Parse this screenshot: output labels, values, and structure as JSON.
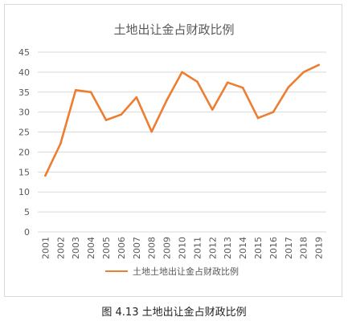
{
  "chart_data": {
    "type": "line",
    "title": "土地出让金占财政比例",
    "caption": "图 4.13 土地出让金占财政比例",
    "x": [
      "2001",
      "2002",
      "2003",
      "2004",
      "2005",
      "2006",
      "2007",
      "2008",
      "2009",
      "2010",
      "2011",
      "2012",
      "2013",
      "2014",
      "2015",
      "2016",
      "2017",
      "2018",
      "2019"
    ],
    "series": [
      {
        "name": "土地土地出让金占财政比例",
        "values": [
          14.1,
          22.1,
          35.5,
          35.0,
          28.0,
          29.4,
          33.7,
          25.1,
          33.0,
          40.0,
          37.6,
          30.6,
          37.4,
          36.1,
          28.5,
          30.0,
          36.2,
          40.0,
          41.8
        ]
      }
    ],
    "ylim": [
      0,
      45
    ],
    "yticks": [
      0,
      5,
      10,
      15,
      20,
      25,
      30,
      35,
      40,
      45
    ],
    "grid": true,
    "legend_position": "bottom",
    "colors": {
      "series": "#ed7d31",
      "grid": "#d9d9d9",
      "text": "#595959"
    }
  }
}
